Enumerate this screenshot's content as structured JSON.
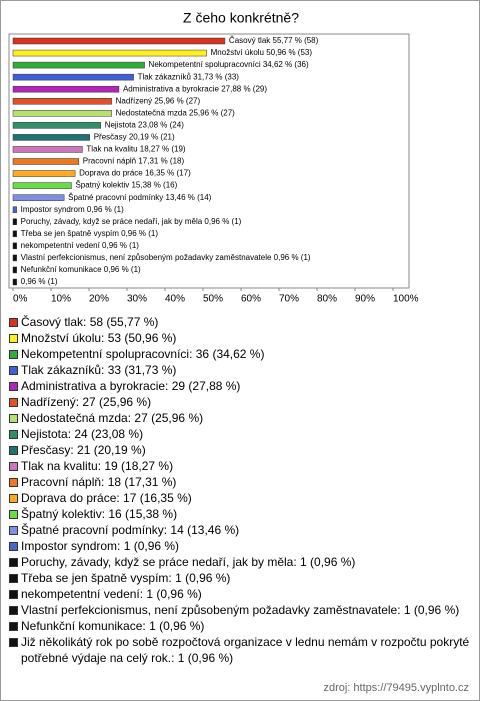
{
  "chart_data": {
    "type": "bar",
    "orientation": "horizontal",
    "title": "Z čeho konkrétně?",
    "categories": [
      "Časový tlak",
      "Množství úkolu",
      "Nekompetentní spolupracovníci",
      "Tlak zákazníků",
      "Administrativa a byrokracie",
      "Nadřízený",
      "Nedostatečná mzda",
      "Nejistota",
      "Přesčasy",
      "Tlak na kvalitu",
      "Pracovní náplň",
      "Doprava do práce",
      "Špatný kolektiv",
      "Špatné pracovní podmínky",
      "Impostor syndrom",
      "Poruchy, závady, když se práce nedaří, jak by měla",
      "Třeba se jen špatně vyspím",
      "nekompetentní vedení",
      "Vlastní perfekcionismus, není způsobeným požadavky zaměstnavatele",
      "Nefunkční komunikace",
      "Již několikátý rok po sobě rozpočtová organizace v lednu nemám v rozpočtu pokryté potřebné výdaje na celý rok."
    ],
    "values": [
      55.77,
      50.96,
      34.62,
      31.73,
      27.88,
      25.96,
      25.96,
      23.08,
      20.19,
      18.27,
      17.31,
      16.35,
      15.38,
      13.46,
      0.96,
      0.96,
      0.96,
      0.96,
      0.96,
      0.96,
      0.96
    ],
    "value_labels": [
      "Časový tlak 55,77 % (58)",
      "Množství úkolu 50,96 % (53)",
      "Nekompetentní spolupracovníci 34,62 % (36)",
      "Tlak zákazníků 31,73 % (33)",
      "Administrativa a byrokracie 27,88 % (29)",
      "Nadřízený 25,96 % (27)",
      "Nedostatečná mzda 25,96 % (27)",
      "Nejistota 23,08 % (24)",
      "Přesčasy 20,19 % (21)",
      "Tlak na kvalitu 18,27 % (19)",
      "Pracovní náplň 17,31 % (18)",
      "Doprava do práce 16,35 % (17)",
      "Špatný kolektiv 15,38 % (16)",
      "Špatné pracovní podmínky 13,46 % (14)",
      "Impostor syndrom 0,96 % (1)",
      "Poruchy, závady, když se práce nedaří, jak by měla 0,96 % (1)",
      "Třeba se jen špatně vyspím 0,96 % (1)",
      "nekompetentní vedení 0,96 % (1)",
      "Vlastní perfekcionismus, není způsobeným požadavky zaměstnavatele 0,96 % (1)",
      "Nefunkční komunikace 0,96 % (1)",
      "0,96 % (1)"
    ],
    "legend_labels": [
      "Časový tlak: 58 (55,77 %)",
      "Množství úkolu: 53 (50,96 %)",
      "Nekompetentní spolupracovníci: 36 (34,62 %)",
      "Tlak zákazníků: 33 (31,73 %)",
      "Administrativa a byrokracie: 29 (27,88 %)",
      "Nadřízený: 27 (25,96 %)",
      "Nedostatečná mzda: 27 (25,96 %)",
      "Nejistota: 24 (23,08 %)",
      "Přesčasy: 21 (20,19 %)",
      "Tlak na kvalitu: 19 (18,27 %)",
      "Pracovní náplň: 18 (17,31 %)",
      "Doprava do práce: 17 (16,35 %)",
      "Špatný kolektiv: 16 (15,38 %)",
      "Špatné pracovní podmínky: 14 (13,46 %)",
      "Impostor syndrom: 1 (0,96 %)",
      "Poruchy, závady, když se práce nedaří, jak by měla: 1 (0,96 %)",
      "Třeba se jen špatně vyspím: 1 (0,96 %)",
      "nekompetentní vedení: 1 (0,96 %)",
      "Vlastní perfekcionismus, není způsobeným požadavky zaměstnavatele: 1 (0,96 %)",
      "Nefunkční komunikace: 1 (0,96 %)",
      "Již několikátý rok po sobě rozpočtová organizace v lednu nemám v rozpočtu pokryté potřebné výdaje na celý rok.: 1 (0,96 %)"
    ],
    "colors": [
      "#d8331f",
      "#ffee22",
      "#2fae3c",
      "#3f5fd8",
      "#b025b8",
      "#e2502a",
      "#b8e070",
      "#2f8f66",
      "#237070",
      "#cc77bb",
      "#ee7722",
      "#ffaa22",
      "#66dd44",
      "#7f8fe8",
      "#4a66c8",
      "#111111",
      "#111111",
      "#111111",
      "#111111",
      "#111111",
      "#111111"
    ],
    "xlim": [
      0,
      100
    ],
    "xticks": [
      {
        "value": 0,
        "label": "0%"
      },
      {
        "value": 10,
        "label": "10%"
      },
      {
        "value": 20,
        "label": "20%"
      },
      {
        "value": 30,
        "label": "30%"
      },
      {
        "value": 40,
        "label": "40%"
      },
      {
        "value": 50,
        "label": "50%"
      },
      {
        "value": 60,
        "label": "60%"
      },
      {
        "value": 70,
        "label": "70%"
      },
      {
        "value": 80,
        "label": "80%"
      },
      {
        "value": 90,
        "label": "90%"
      },
      {
        "value": 100,
        "label": "100%"
      }
    ],
    "source": "zdroj: https://79495.vyplnto.cz"
  }
}
